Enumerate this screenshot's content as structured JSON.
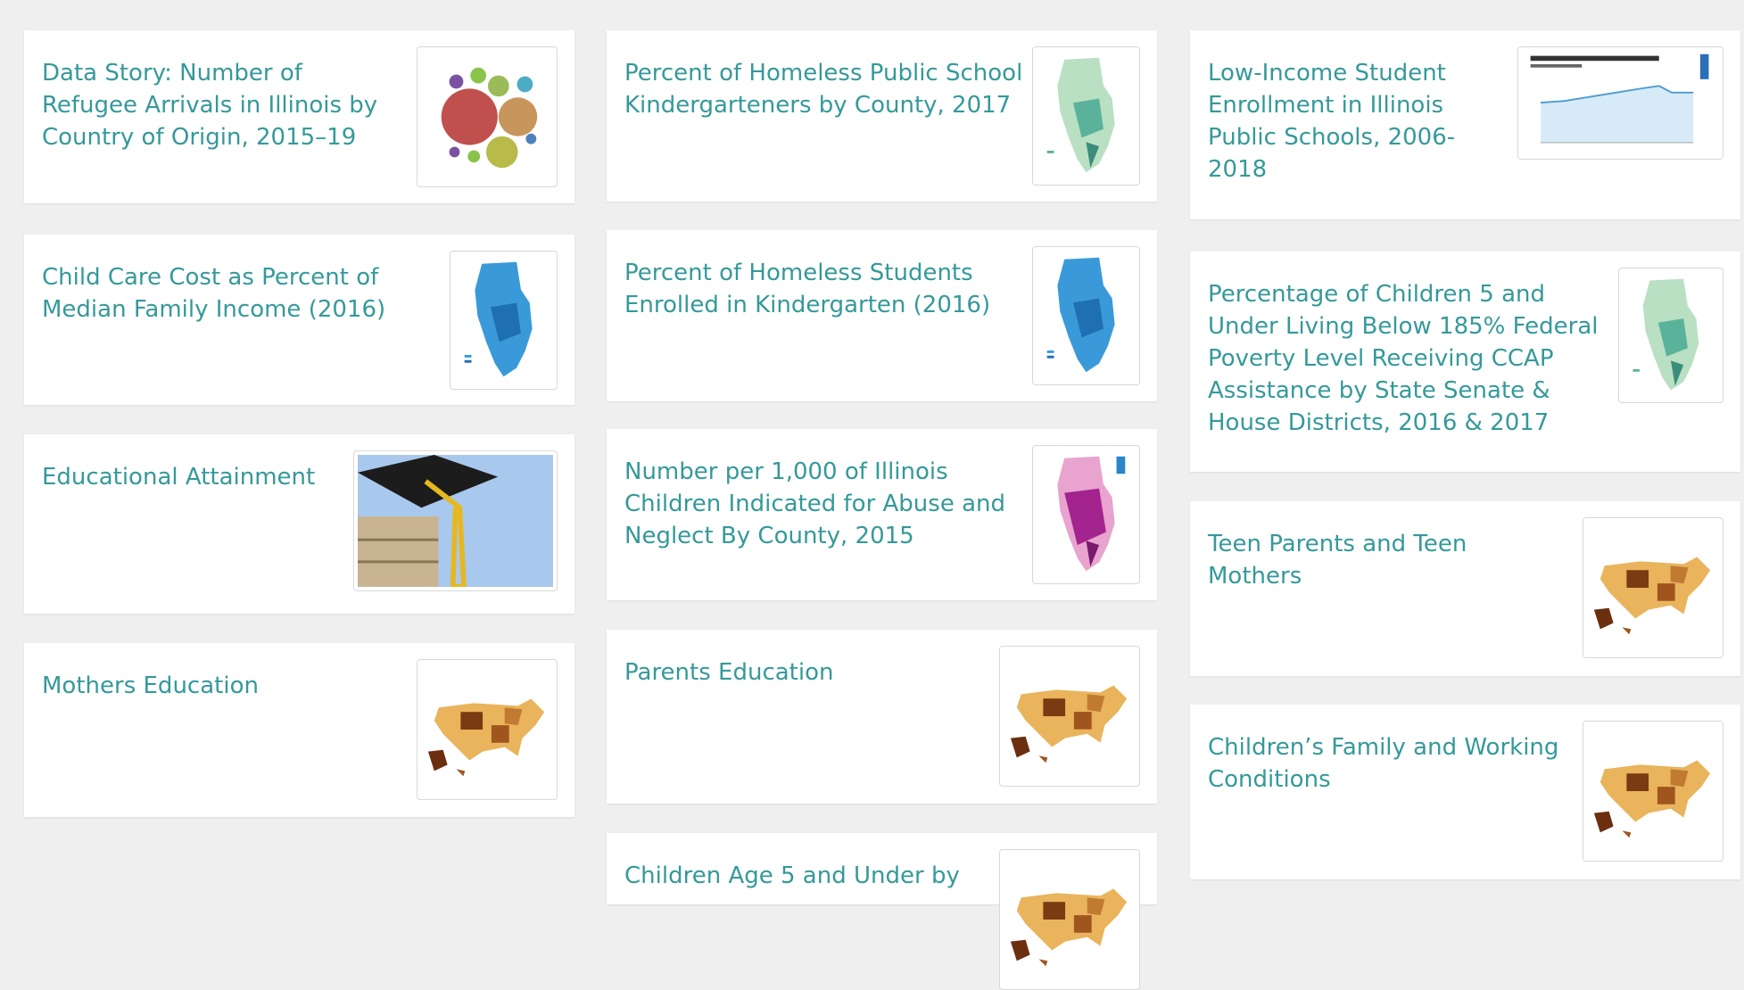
{
  "columns": [
    {
      "cards": [
        {
          "title": "Data Story: Number of Refugee Arrivals in Illinois by Country of Origin, 2015–19"
        },
        {
          "title": "Child Care Cost as Percent of Median Family Income (2016)"
        },
        {
          "title": "Educational Attainment"
        },
        {
          "title": "Mothers Education"
        }
      ]
    },
    {
      "cards": [
        {
          "title": "Percent of Homeless Public School Kindergarteners by County, 2017"
        },
        {
          "title": "Percent of Homeless Students Enrolled in Kindergarten (2016)"
        },
        {
          "title": "Number per 1,000 of Illinois Children Indicated for Abuse and Neglect By County, 2015"
        },
        {
          "title": "Parents Education"
        },
        {
          "title": "Children Age 5 and Under by"
        }
      ]
    },
    {
      "cards": [
        {
          "title": "Low-Income Student Enrollment in Illinois Public Schools, 2006-2018"
        },
        {
          "title": "Percentage of Children 5 and Under Living Below 185% Federal Poverty Level Receiving CCAP Assistance by State Senate & House Districts, 2016 & 2017"
        },
        {
          "title": "Teen Parents and Teen Mothers"
        },
        {
          "title": "Children’s Family and Working Conditions"
        }
      ]
    }
  ]
}
